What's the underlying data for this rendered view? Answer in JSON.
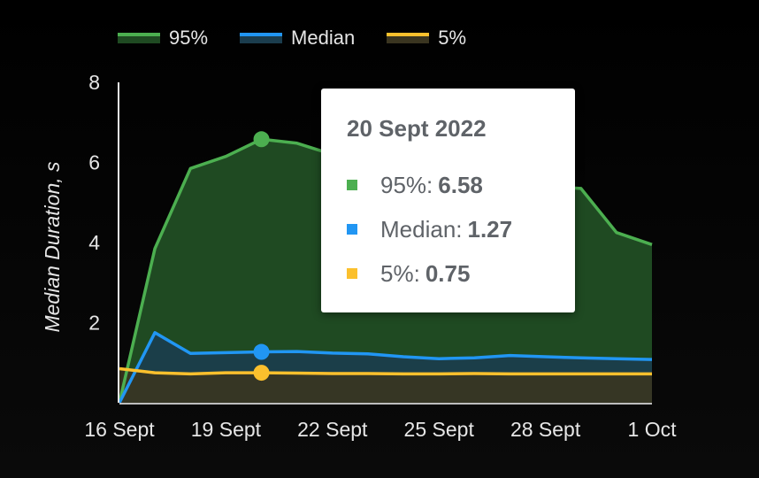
{
  "chart_data": {
    "type": "area",
    "ylabel": "Median Duration, s",
    "xlabel": "",
    "ylim": [
      0,
      8
    ],
    "yticks": [
      2,
      4,
      6,
      8
    ],
    "x": [
      "16 Sept",
      "17 Sept",
      "18 Sept",
      "19 Sept",
      "20 Sept",
      "21 Sept",
      "22 Sept",
      "23 Sept",
      "24 Sept",
      "25 Sept",
      "26 Sept",
      "27 Sept",
      "28 Sept",
      "29 Sept",
      "30 Sept",
      "1 Oct"
    ],
    "xtick_labels": [
      "16 Sept",
      "19 Sept",
      "22 Sept",
      "25 Sept",
      "28 Sept",
      "1 Oct"
    ],
    "xtick_indices": [
      0,
      3,
      6,
      9,
      12,
      15
    ],
    "legend_position": "top-left",
    "series": [
      {
        "name": "95%",
        "color": "#4caf50",
        "fill": "#1f4a22",
        "values": [
          0.0,
          3.85,
          5.85,
          6.15,
          6.58,
          6.48,
          6.2,
          5.9,
          5.7,
          5.6,
          5.55,
          5.45,
          5.4,
          5.35,
          4.25,
          3.95
        ]
      },
      {
        "name": "Median",
        "color": "#2196f3",
        "fill": "#1b3d4e",
        "values": [
          0.0,
          1.75,
          1.23,
          1.25,
          1.27,
          1.28,
          1.24,
          1.22,
          1.15,
          1.1,
          1.12,
          1.18,
          1.15,
          1.12,
          1.1,
          1.08
        ]
      },
      {
        "name": "5%",
        "color": "#fbc02d",
        "fill": "#3a3520",
        "values": [
          0.85,
          0.75,
          0.72,
          0.75,
          0.75,
          0.74,
          0.73,
          0.73,
          0.72,
          0.72,
          0.73,
          0.72,
          0.72,
          0.72,
          0.72,
          0.72
        ]
      }
    ],
    "highlight_index": 4,
    "tooltip": {
      "title": "20 Sept 2022",
      "rows": [
        {
          "label": "95%:",
          "value": "6.58",
          "color": "#4caf50"
        },
        {
          "label": "Median:",
          "value": "1.27",
          "color": "#2196f3"
        },
        {
          "label": "5%:",
          "value": "0.75",
          "color": "#fbc02d"
        }
      ]
    }
  }
}
